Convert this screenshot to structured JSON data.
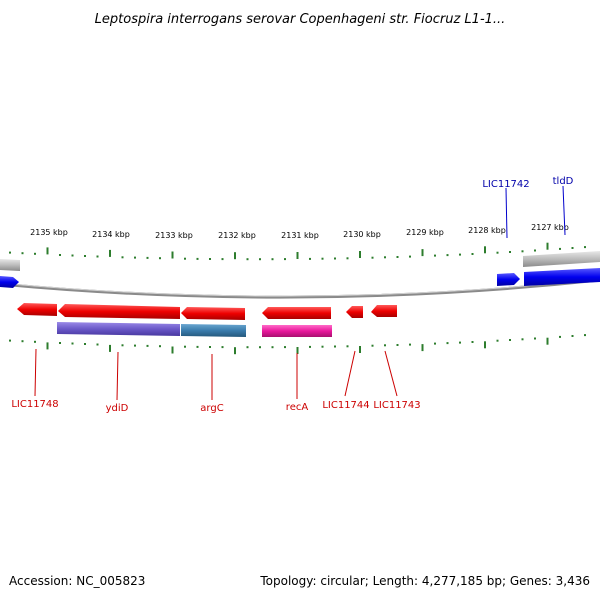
{
  "title": "Leptospira interrogans serovar Copenhageni str. Fiocruz L1-1...",
  "accession": "Accession: NC_005823",
  "summary": "Topology: circular; Length: 4,277,185 bp; Genes: 3,436",
  "colors": {
    "forward_gene": "#0000ee",
    "reverse_gene": "#ee0000",
    "tick": "#2d7d2d",
    "backbone": "#808080",
    "label_forward": "#0000aa",
    "label_reverse": "#cc0000"
  },
  "kbp_labels": [
    "2135 kbp",
    "2134 kbp",
    "2133 kbp",
    "2132 kbp",
    "2131 kbp",
    "2130 kbp",
    "2129 kbp",
    "2128 kbp",
    "2127 kbp"
  ],
  "forward_genes": [
    "LIC11742",
    "tldD"
  ],
  "reverse_genes": [
    "LIC11748",
    "ydiD",
    "argC",
    "recA",
    "LIC11744",
    "LIC11743"
  ]
}
